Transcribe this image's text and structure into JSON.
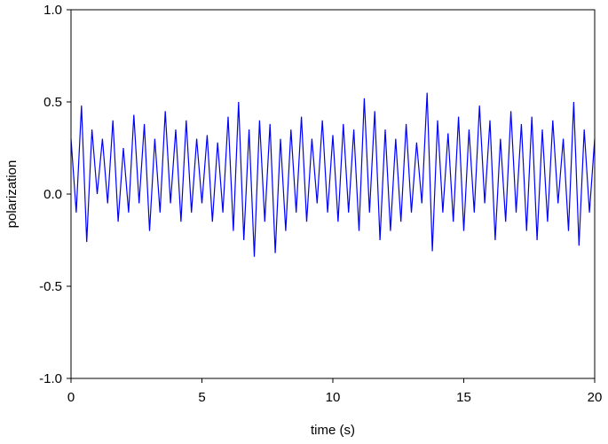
{
  "chart_data": {
    "type": "line",
    "xlabel": "time (s)",
    "ylabel": "polarization",
    "xlim": [
      0,
      20
    ],
    "xticks": [
      0,
      5,
      10,
      15,
      20
    ],
    "ylim": [
      -1,
      1
    ],
    "yticks": [
      {
        "value": -1,
        "label": "-1.0"
      },
      -0.5,
      {
        "value": 0,
        "label": "0.0"
      },
      0.5,
      {
        "value": 1,
        "label": "1.0"
      }
    ],
    "x": [
      0,
      0.2,
      0.4,
      0.6,
      0.8,
      1,
      1.2,
      1.4,
      1.6,
      1.8,
      2,
      2.2,
      2.4,
      2.6,
      2.8,
      3,
      3.2,
      3.4,
      3.6,
      3.8,
      4,
      4.2,
      4.4,
      4.6,
      4.8,
      5,
      5.2,
      5.4,
      5.6,
      5.8,
      6,
      6.2,
      6.4,
      6.6,
      6.8,
      7,
      7.2,
      7.4,
      7.6,
      7.8,
      8,
      8.2,
      8.4,
      8.6,
      8.8,
      9,
      9.2,
      9.4,
      9.6,
      9.8,
      10,
      10.2,
      10.4,
      10.6,
      10.8,
      11,
      11.2,
      11.4,
      11.6,
      11.8,
      12,
      12.2,
      12.4,
      12.6,
      12.8,
      13,
      13.2,
      13.4,
      13.6,
      13.8,
      14,
      14.2,
      14.4,
      14.6,
      14.8,
      15,
      15.2,
      15.4,
      15.6,
      15.8,
      16,
      16.2,
      16.4,
      16.6,
      16.8,
      17,
      17.2,
      17.4,
      17.6,
      17.8,
      18,
      18.2,
      18.4,
      18.6,
      18.8,
      19,
      19.2,
      19.4,
      19.6,
      19.8,
      20
    ],
    "series": [
      {
        "color": "#0000ff",
        "values": [
          0.3,
          -0.1,
          0.48,
          -0.26,
          0.35,
          0.0,
          0.3,
          -0.05,
          0.4,
          -0.15,
          0.25,
          -0.1,
          0.43,
          -0.05,
          0.38,
          -0.2,
          0.3,
          -0.1,
          0.45,
          -0.05,
          0.35,
          -0.15,
          0.4,
          -0.1,
          0.3,
          -0.05,
          0.32,
          -0.15,
          0.28,
          -0.1,
          0.42,
          -0.2,
          0.5,
          -0.25,
          0.35,
          -0.34,
          0.4,
          -0.15,
          0.38,
          -0.32,
          0.3,
          -0.2,
          0.35,
          -0.1,
          0.42,
          -0.15,
          0.3,
          -0.05,
          0.4,
          -0.1,
          0.32,
          -0.15,
          0.38,
          -0.1,
          0.35,
          -0.2,
          0.52,
          -0.1,
          0.45,
          -0.25,
          0.35,
          -0.2,
          0.3,
          -0.15,
          0.38,
          -0.1,
          0.28,
          -0.05,
          0.55,
          -0.31,
          0.4,
          -0.1,
          0.33,
          -0.15,
          0.42,
          -0.2,
          0.35,
          -0.1,
          0.48,
          -0.05,
          0.4,
          -0.25,
          0.3,
          -0.15,
          0.45,
          -0.1,
          0.38,
          -0.2,
          0.42,
          -0.25,
          0.35,
          -0.15,
          0.4,
          -0.05,
          0.3,
          -0.2,
          0.5,
          -0.28,
          0.35,
          -0.1,
          0.3
        ]
      }
    ]
  }
}
